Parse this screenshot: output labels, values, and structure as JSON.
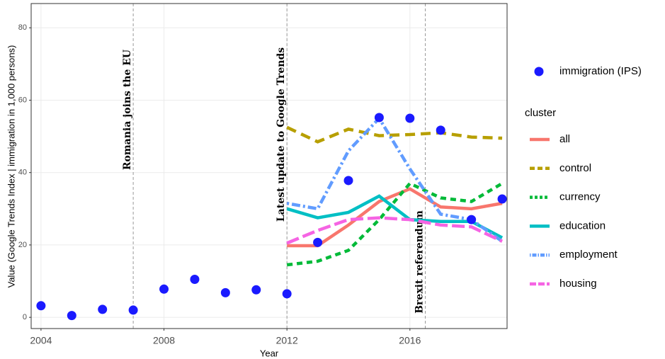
{
  "chart_data": {
    "type": "line",
    "x_label": "Year",
    "y_label": "Value (Google Trends Index | immigration in 1,000 persons)",
    "xlim": [
      2003.68,
      2019.16
    ],
    "ylim": [
      -3.1,
      86.7
    ],
    "xticks": [
      2004,
      2008,
      2012,
      2016
    ],
    "yticks": [
      0,
      20,
      40,
      60,
      80
    ],
    "grid": true,
    "points": {
      "name": "immigration (IPS)",
      "color": "#1a1aff",
      "x": [
        2004,
        2005,
        2006,
        2007,
        2008,
        2009,
        2010,
        2011,
        2012,
        2013,
        2014,
        2015,
        2016,
        2017,
        2018,
        2019
      ],
      "values": [
        3.2,
        0.5,
        2.2,
        2.0,
        7.8,
        10.5,
        6.8,
        7.6,
        6.5,
        20.7,
        37.8,
        55.2,
        55.0,
        51.7,
        27.0,
        32.7
      ]
    },
    "legend_title": "cluster",
    "x": [
      2012,
      2013,
      2014,
      2015,
      2016,
      2017,
      2018,
      2019
    ],
    "series": [
      {
        "name": "all",
        "color": "#F8766D",
        "dash": "none",
        "values": [
          19.8,
          19.8,
          25.5,
          32,
          35.5,
          30.5,
          30,
          31.5
        ]
      },
      {
        "name": "control",
        "color": "#B79F00",
        "dash": "14,8",
        "values": [
          52.5,
          48.5,
          52,
          50.2,
          50.5,
          51,
          49.8,
          49.5
        ]
      },
      {
        "name": "currency",
        "color": "#00BA38",
        "dash": "8,6",
        "values": [
          14.5,
          15.5,
          18.5,
          27,
          37,
          33,
          32,
          37
        ]
      },
      {
        "name": "education",
        "color": "#00BFC4",
        "dash": "none",
        "values": [
          30,
          27.5,
          29,
          33.5,
          27,
          26.5,
          26.5,
          22
        ]
      },
      {
        "name": "employment",
        "color": "#619CFF",
        "dash": "3,4,12,4",
        "values": [
          31.5,
          30,
          46,
          55,
          41,
          28.5,
          27,
          21
        ]
      },
      {
        "name": "housing",
        "color": "#F564E3",
        "dash": "18,6",
        "values": [
          20.5,
          24,
          27,
          27.5,
          27,
          25.5,
          25,
          21
        ]
      }
    ],
    "annotations": [
      {
        "x": 2007,
        "text": "Romania joins the EU"
      },
      {
        "x": 2012,
        "text": "Latest update to Google Trends"
      },
      {
        "x": 2016.5,
        "text": "Brexit referendum"
      }
    ]
  }
}
